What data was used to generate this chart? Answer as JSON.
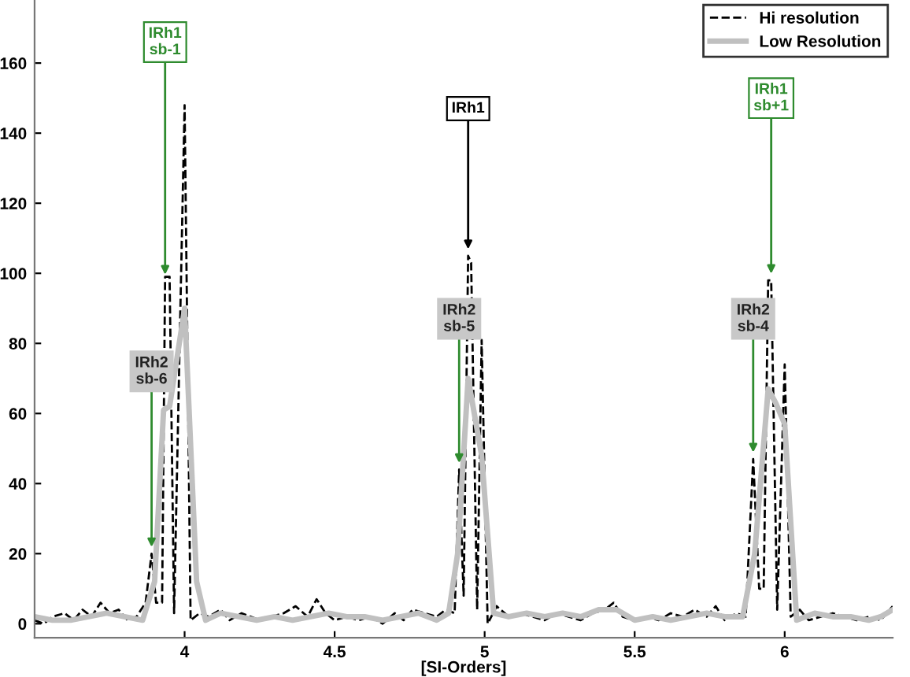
{
  "chart_data": {
    "type": "line",
    "xlabel": "[SI-Orders]",
    "xlim": [
      3.5,
      6.36
    ],
    "ylim": [
      -4,
      178
    ],
    "xticks": [
      4,
      4.5,
      5,
      5.5,
      6
    ],
    "yticks": [
      0,
      20,
      40,
      60,
      80,
      100,
      120,
      140,
      160
    ],
    "legend": "top right",
    "grid": false,
    "series": [
      {
        "name": "Hi resolution",
        "color": "#000000",
        "line_style": "dashed",
        "x": [
          3.5,
          3.53,
          3.56,
          3.6,
          3.63,
          3.66,
          3.69,
          3.72,
          3.75,
          3.78,
          3.81,
          3.84,
          3.87,
          3.89,
          3.905,
          3.925,
          3.935,
          3.95,
          3.965,
          4.0,
          4.02,
          4.05,
          4.08,
          4.12,
          4.15,
          4.19,
          4.22,
          4.25,
          4.29,
          4.33,
          4.37,
          4.41,
          4.44,
          4.47,
          4.5,
          4.54,
          4.58,
          4.62,
          4.66,
          4.7,
          4.73,
          4.76,
          4.8,
          4.84,
          4.87,
          4.9,
          4.915,
          4.93,
          4.945,
          4.955,
          4.975,
          4.99,
          5.01,
          5.04,
          5.08,
          5.12,
          5.16,
          5.2,
          5.24,
          5.28,
          5.32,
          5.36,
          5.4,
          5.43,
          5.46,
          5.5,
          5.54,
          5.58,
          5.62,
          5.66,
          5.7,
          5.74,
          5.77,
          5.8,
          5.84,
          5.87,
          5.895,
          5.915,
          5.93,
          5.945,
          5.955,
          5.975,
          6.0,
          6.02,
          6.05,
          6.08,
          6.12,
          6.16,
          6.2,
          6.24,
          6.28,
          6.32,
          6.36
        ],
        "values": [
          1,
          0,
          2,
          3,
          1,
          4,
          2,
          6,
          3,
          4,
          1,
          2,
          6,
          20,
          6,
          6,
          99,
          99,
          3,
          148,
          1,
          3,
          2,
          4,
          1,
          3,
          2,
          1,
          2,
          3,
          5,
          2,
          7,
          3,
          1,
          2,
          1,
          2,
          0,
          3,
          1,
          4,
          3,
          2,
          4,
          3,
          44,
          8,
          105,
          103,
          4,
          81,
          0,
          5,
          2,
          3,
          2,
          1,
          3,
          2,
          1,
          3,
          4,
          6,
          2,
          1,
          2,
          1,
          3,
          2,
          4,
          2,
          5,
          1,
          3,
          2,
          47,
          10,
          10,
          98,
          98,
          4,
          74,
          2,
          4,
          1,
          2,
          3,
          2,
          1,
          2,
          1,
          5
        ]
      },
      {
        "name": "Low Resolution",
        "color": "#c0c0c0",
        "line_style": "solid",
        "x": [
          3.5,
          3.56,
          3.62,
          3.68,
          3.74,
          3.8,
          3.86,
          3.9,
          3.93,
          3.95,
          4.0,
          4.04,
          4.07,
          4.12,
          4.18,
          4.24,
          4.3,
          4.36,
          4.42,
          4.48,
          4.54,
          4.6,
          4.66,
          4.72,
          4.78,
          4.84,
          4.88,
          4.91,
          4.945,
          4.99,
          5.03,
          5.08,
          5.14,
          5.2,
          5.26,
          5.32,
          5.38,
          5.44,
          5.5,
          5.56,
          5.62,
          5.68,
          5.74,
          5.8,
          5.86,
          5.9,
          5.945,
          5.97,
          6.0,
          6.04,
          6.1,
          6.16,
          6.22,
          6.28,
          6.32,
          6.36
        ],
        "values": [
          2,
          1,
          1,
          2,
          3,
          2,
          1,
          12,
          61,
          62,
          90,
          12,
          1,
          3,
          2,
          1,
          2,
          1,
          2,
          3,
          2,
          2,
          1,
          2,
          3,
          1,
          3,
          20,
          70,
          48,
          3,
          2,
          3,
          2,
          3,
          2,
          4,
          4,
          1,
          2,
          1,
          2,
          3,
          2,
          2,
          20,
          67,
          63,
          57,
          1,
          3,
          2,
          2,
          1,
          2,
          4
        ]
      }
    ],
    "annotations": [
      {
        "text": "IRh1\nsb-1",
        "x": 3.935,
        "y": 99
      },
      {
        "text": "IRh2\nsb-6",
        "x": 3.89,
        "y": 20
      },
      {
        "text": "IRh1",
        "x": 4.945,
        "y": 105
      },
      {
        "text": "IRh2\nsb-5",
        "x": 4.915,
        "y": 44
      },
      {
        "text": "IRh2\nsb-4",
        "x": 5.895,
        "y": 47
      },
      {
        "text": "IRh1\nsb+1",
        "x": 5.955,
        "y": 98
      }
    ]
  }
}
